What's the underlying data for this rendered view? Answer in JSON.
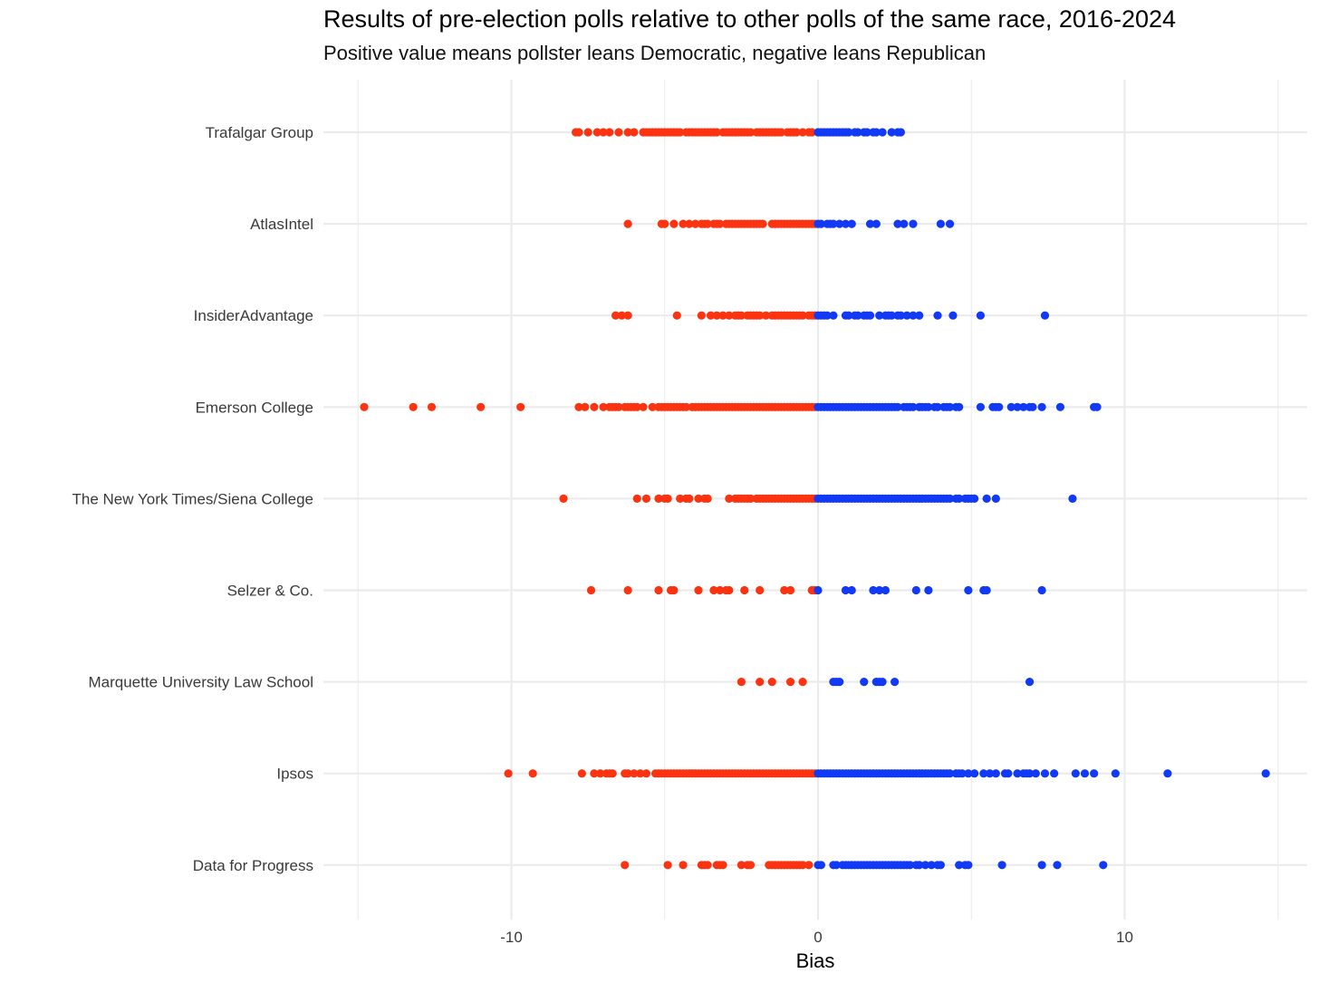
{
  "chart_data": {
    "type": "scatter",
    "title": "Results of pre-election polls relative to other polls of the same race, 2016-2024",
    "subtitle": "Positive value means pollster leans Democratic, negative leans Republican",
    "xlabel": "Bias",
    "ylabel": "",
    "xlim": [
      -16,
      16.2
    ],
    "x_ticks": [
      -10,
      0,
      10
    ],
    "grid": true,
    "legend": "none",
    "colors": {
      "negative": "#fc3311",
      "positive": "#1239f5",
      "grid": "#ebebeb"
    },
    "categories": [
      "Trafalgar Group",
      "AtlasIntel",
      "InsiderAdvantage",
      "Emerson College",
      "The New York Times/Siena College",
      "Selzer & Co.",
      "Marquette University Law School",
      "Ipsos",
      "Data for Progress"
    ],
    "series": [
      {
        "category": "Trafalgar Group",
        "x": [
          -7.9,
          -7.8,
          -7.5,
          -7.2,
          -7.0,
          -6.8,
          -6.5,
          -6.2,
          -6.0,
          -5.7,
          -5.6,
          -5.5,
          -5.4,
          -5.3,
          -5.2,
          -5.1,
          -5.0,
          -4.9,
          -4.8,
          -4.7,
          -4.6,
          -4.5,
          -4.3,
          -4.2,
          -4.1,
          -4.0,
          -3.9,
          -3.8,
          -3.7,
          -3.6,
          -3.5,
          -3.4,
          -3.3,
          -3.1,
          -3.0,
          -2.9,
          -2.8,
          -2.7,
          -2.6,
          -2.5,
          -2.4,
          -2.3,
          -2.2,
          -2.0,
          -1.9,
          -1.8,
          -1.7,
          -1.6,
          -1.5,
          -1.4,
          -1.3,
          -1.2,
          -1.0,
          -0.9,
          -0.8,
          -0.7,
          -0.5,
          -0.3,
          -0.2,
          0.0,
          0.1,
          0.2,
          0.3,
          0.4,
          0.5,
          0.6,
          0.7,
          0.8,
          0.9,
          1.0,
          1.2,
          1.3,
          1.5,
          1.6,
          1.8,
          1.9,
          2.1,
          2.4,
          2.6,
          2.7
        ]
      },
      {
        "category": "AtlasIntel",
        "x": [
          -6.2,
          -5.1,
          -5.0,
          -4.7,
          -4.4,
          -4.2,
          -4.0,
          -3.8,
          -3.7,
          -3.6,
          -3.4,
          -3.3,
          -3.2,
          -3.0,
          -2.9,
          -2.8,
          -2.7,
          -2.6,
          -2.5,
          -2.4,
          -2.3,
          -2.2,
          -2.1,
          -2.0,
          -1.9,
          -1.8,
          -1.5,
          -1.4,
          -1.3,
          -1.2,
          -1.1,
          -1.0,
          -0.9,
          -0.8,
          -0.7,
          -0.6,
          -0.5,
          -0.4,
          -0.3,
          -0.2,
          -0.1,
          0.0,
          0.1,
          0.3,
          0.4,
          0.5,
          0.7,
          0.9,
          1.1,
          1.7,
          1.9,
          2.6,
          2.8,
          3.1,
          4.0,
          4.3
        ]
      },
      {
        "category": "InsiderAdvantage",
        "x": [
          -6.6,
          -6.4,
          -6.2,
          -4.6,
          -3.8,
          -3.5,
          -3.3,
          -3.1,
          -2.9,
          -2.7,
          -2.6,
          -2.5,
          -2.3,
          -2.2,
          -2.1,
          -2.0,
          -1.9,
          -1.7,
          -1.5,
          -1.4,
          -1.3,
          -1.2,
          -1.1,
          -1.0,
          -0.9,
          -0.8,
          -0.7,
          -0.6,
          -0.5,
          -0.3,
          -0.2,
          -0.1,
          0.0,
          0.1,
          0.2,
          0.3,
          0.5,
          0.9,
          1.0,
          1.2,
          1.3,
          1.5,
          1.6,
          1.7,
          2.0,
          2.2,
          2.3,
          2.4,
          2.6,
          2.7,
          2.9,
          3.1,
          3.3,
          3.9,
          4.4,
          5.3,
          7.4
        ]
      },
      {
        "category": "Emerson College",
        "x": [
          -14.8,
          -13.2,
          -12.6,
          -11.0,
          -9.7,
          -7.8,
          -7.6,
          -7.3,
          -7.0,
          -6.8,
          -6.7,
          -6.6,
          -6.5,
          -6.3,
          -6.2,
          -6.1,
          -6.0,
          -5.9,
          -5.7,
          -5.4,
          -5.2,
          -5.1,
          -5.0,
          -4.9,
          -4.8,
          -4.7,
          -4.6,
          -4.5,
          -4.4,
          -4.3,
          -4.1,
          -4.0,
          -3.9,
          -3.8,
          -3.7,
          -3.6,
          -3.5,
          -3.4,
          -3.3,
          -3.2,
          -3.1,
          -3.0,
          -2.9,
          -2.8,
          -2.7,
          -2.6,
          -2.5,
          -2.4,
          -2.3,
          -2.2,
          -2.1,
          -2.0,
          -1.9,
          -1.8,
          -1.7,
          -1.6,
          -1.5,
          -1.4,
          -1.3,
          -1.2,
          -1.1,
          -1.0,
          -0.9,
          -0.8,
          -0.7,
          -0.6,
          -0.5,
          -0.4,
          -0.3,
          -0.2,
          -0.1,
          0.0,
          0.1,
          0.2,
          0.3,
          0.4,
          0.5,
          0.6,
          0.7,
          0.8,
          0.9,
          1.0,
          1.1,
          1.2,
          1.3,
          1.4,
          1.5,
          1.6,
          1.7,
          1.8,
          1.9,
          2.0,
          2.1,
          2.2,
          2.3,
          2.4,
          2.5,
          2.6,
          2.8,
          2.9,
          3.0,
          3.1,
          3.3,
          3.4,
          3.5,
          3.6,
          3.8,
          3.9,
          4.1,
          4.2,
          4.3,
          4.5,
          4.6,
          5.3,
          5.7,
          5.8,
          5.9,
          6.3,
          6.5,
          6.7,
          6.9,
          7.0,
          7.3,
          7.9,
          9.0,
          9.1
        ]
      },
      {
        "category": "The New York Times/Siena College",
        "x": [
          -8.3,
          -5.9,
          -5.6,
          -5.2,
          -5.0,
          -4.9,
          -4.5,
          -4.3,
          -4.2,
          -3.9,
          -3.7,
          -3.6,
          -2.9,
          -2.7,
          -2.6,
          -2.5,
          -2.4,
          -2.3,
          -2.2,
          -2.0,
          -1.9,
          -1.8,
          -1.7,
          -1.6,
          -1.5,
          -1.4,
          -1.3,
          -1.2,
          -1.1,
          -1.0,
          -0.9,
          -0.8,
          -0.7,
          -0.6,
          -0.5,
          -0.4,
          -0.3,
          -0.2,
          -0.1,
          0.0,
          0.1,
          0.2,
          0.3,
          0.4,
          0.5,
          0.6,
          0.7,
          0.8,
          0.9,
          1.0,
          1.1,
          1.2,
          1.3,
          1.4,
          1.5,
          1.6,
          1.7,
          1.8,
          1.9,
          2.0,
          2.1,
          2.2,
          2.3,
          2.4,
          2.5,
          2.6,
          2.7,
          2.8,
          2.9,
          3.0,
          3.1,
          3.2,
          3.3,
          3.4,
          3.5,
          3.6,
          3.7,
          3.8,
          3.9,
          4.0,
          4.1,
          4.2,
          4.3,
          4.5,
          4.6,
          4.8,
          4.9,
          5.0,
          5.1,
          5.5,
          5.8,
          8.3
        ]
      },
      {
        "category": "Selzer & Co.",
        "x": [
          -7.4,
          -6.2,
          -5.2,
          -4.8,
          -4.7,
          -3.9,
          -3.4,
          -3.2,
          -3.0,
          -2.9,
          -2.4,
          -1.9,
          -1.1,
          -0.9,
          -0.2,
          -0.1,
          0.0,
          0.9,
          1.1,
          1.8,
          2.0,
          2.2,
          3.2,
          3.6,
          4.9,
          5.4,
          5.5,
          7.3
        ]
      },
      {
        "category": "Marquette University Law School",
        "x": [
          -2.5,
          -1.9,
          -1.5,
          -0.9,
          -0.5,
          0.5,
          0.6,
          0.7,
          1.5,
          1.9,
          2.0,
          2.1,
          2.5,
          6.9
        ]
      },
      {
        "category": "Ipsos",
        "x": [
          -10.1,
          -9.3,
          -7.7,
          -7.3,
          -7.1,
          -6.9,
          -6.8,
          -6.7,
          -6.3,
          -6.2,
          -6.0,
          -5.8,
          -5.6,
          -5.3,
          -5.2,
          -5.1,
          -5.0,
          -4.9,
          -4.8,
          -4.7,
          -4.6,
          -4.5,
          -4.4,
          -4.3,
          -4.2,
          -4.1,
          -4.0,
          -3.9,
          -3.8,
          -3.7,
          -3.6,
          -3.5,
          -3.4,
          -3.3,
          -3.2,
          -3.1,
          -3.0,
          -2.9,
          -2.8,
          -2.7,
          -2.6,
          -2.5,
          -2.4,
          -2.3,
          -2.2,
          -2.1,
          -2.0,
          -1.9,
          -1.8,
          -1.7,
          -1.6,
          -1.5,
          -1.4,
          -1.3,
          -1.2,
          -1.1,
          -1.0,
          -0.9,
          -0.8,
          -0.7,
          -0.6,
          -0.5,
          -0.4,
          -0.3,
          -0.2,
          -0.1,
          0.0,
          0.1,
          0.2,
          0.3,
          0.4,
          0.5,
          0.6,
          0.7,
          0.8,
          0.9,
          1.0,
          1.1,
          1.2,
          1.3,
          1.4,
          1.5,
          1.6,
          1.7,
          1.8,
          1.9,
          2.0,
          2.1,
          2.2,
          2.3,
          2.4,
          2.5,
          2.6,
          2.7,
          2.8,
          2.9,
          3.0,
          3.1,
          3.2,
          3.3,
          3.4,
          3.5,
          3.6,
          3.7,
          3.8,
          3.9,
          4.0,
          4.1,
          4.2,
          4.3,
          4.5,
          4.6,
          4.7,
          4.9,
          5.1,
          5.4,
          5.6,
          5.8,
          6.1,
          6.2,
          6.5,
          6.7,
          6.8,
          6.9,
          7.1,
          7.4,
          7.7,
          8.4,
          8.7,
          9.0,
          9.7,
          11.4,
          14.6
        ]
      },
      {
        "category": "Data for Progress",
        "x": [
          -6.3,
          -4.9,
          -4.4,
          -3.8,
          -3.7,
          -3.6,
          -3.3,
          -3.2,
          -3.1,
          -2.5,
          -2.3,
          -2.2,
          -1.6,
          -1.5,
          -1.4,
          -1.3,
          -1.2,
          -1.1,
          -1.0,
          -0.9,
          -0.8,
          -0.7,
          -0.6,
          -0.5,
          -0.3,
          0.0,
          0.1,
          0.5,
          0.6,
          0.8,
          0.9,
          1.0,
          1.1,
          1.2,
          1.3,
          1.4,
          1.5,
          1.6,
          1.7,
          1.8,
          1.9,
          2.0,
          2.1,
          2.2,
          2.3,
          2.4,
          2.5,
          2.6,
          2.7,
          2.8,
          2.9,
          3.0,
          3.2,
          3.3,
          3.5,
          3.7,
          3.9,
          4.0,
          4.6,
          4.8,
          4.9,
          6.0,
          7.3,
          7.8,
          9.3
        ]
      }
    ]
  }
}
